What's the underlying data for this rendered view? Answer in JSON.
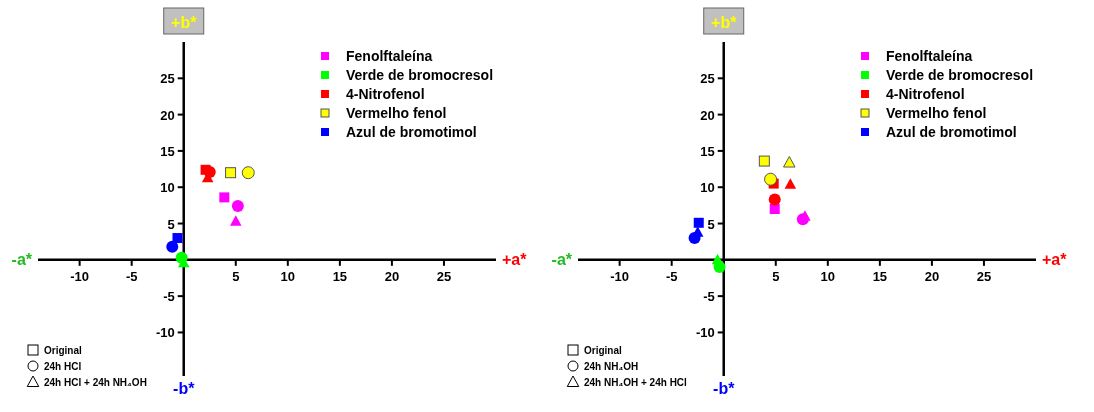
{
  "chart_data": [
    {
      "type": "scatter",
      "xlim": [
        -14,
        30
      ],
      "ylim": [
        -16,
        30
      ],
      "xticks": [
        -10,
        -5,
        5,
        10,
        15,
        20,
        25
      ],
      "yticks": [
        -10,
        -5,
        5,
        10,
        15,
        20,
        25
      ],
      "legend": "top right",
      "grid": false,
      "annotations": [
        "+a*",
        "-a*",
        "+b*",
        "-b*",
        "Original",
        "24h HCl",
        "24h HCl + 24h NH₄OH"
      ],
      "series": [
        {
          "name": "Fenolftaleína",
          "color": "#ff00ff",
          "marker": "square",
          "x": [
            3.9
          ],
          "values": [
            8.6
          ]
        },
        {
          "name": "Verde de bromocresol",
          "color": "#00ff00",
          "marker": "square",
          "x": [
            null
          ],
          "values": [
            null
          ]
        },
        {
          "name": "4-Nitrofenol",
          "color": "#ff0000",
          "marker": "square",
          "x": [
            2.1
          ],
          "values": [
            12.4
          ]
        },
        {
          "name": "Vermelho fenol",
          "color": "#ffff00",
          "marker": "square",
          "x": [
            4.5
          ],
          "values": [
            12.0
          ]
        },
        {
          "name": "Azul de bromotimol",
          "color": "#0000ff",
          "marker": "square",
          "x": [
            -0.6
          ],
          "values": [
            3.0
          ]
        },
        {
          "color": "#ff00ff",
          "marker": "circle",
          "x": [
            5.2
          ],
          "values": [
            7.4
          ]
        },
        {
          "color": "#00ff00",
          "marker": "circle",
          "x": [
            -0.2
          ],
          "values": [
            0.3
          ]
        },
        {
          "color": "#ff0000",
          "marker": "circle",
          "x": [
            2.5
          ],
          "values": [
            12.1
          ]
        },
        {
          "color": "#ffff00",
          "marker": "circle",
          "x": [
            6.2
          ],
          "values": [
            12.0
          ]
        },
        {
          "color": "#0000ff",
          "marker": "circle",
          "x": [
            -1.1
          ],
          "values": [
            1.8
          ]
        },
        {
          "color": "#ff00ff",
          "marker": "triangle",
          "x": [
            5.0
          ],
          "values": [
            5.3
          ]
        },
        {
          "color": "#00ff00",
          "marker": "triangle",
          "x": [
            0.0
          ],
          "values": [
            -0.4
          ]
        },
        {
          "color": "#ff0000",
          "marker": "triangle",
          "x": [
            2.3
          ],
          "values": [
            11.3
          ]
        }
      ]
    },
    {
      "type": "scatter",
      "xlim": [
        -14,
        30
      ],
      "ylim": [
        -16,
        30
      ],
      "xticks": [
        -10,
        -5,
        5,
        10,
        15,
        20,
        25
      ],
      "yticks": [
        -10,
        -5,
        5,
        10,
        15,
        20,
        25
      ],
      "legend": "top right",
      "grid": false,
      "annotations": [
        "+a*",
        "-a*",
        "+b*",
        "-b*",
        "Original",
        "24h NH₄OH",
        "24h NH₄OH + 24h HCl"
      ],
      "series": [
        {
          "name": "Fenolftaleína",
          "color": "#ff00ff",
          "marker": "square",
          "x": [
            4.9
          ],
          "values": [
            7.0
          ]
        },
        {
          "name": "Verde de bromocresol",
          "color": "#00ff00",
          "marker": "square",
          "x": [
            null
          ],
          "values": [
            null
          ]
        },
        {
          "name": "4-Nitrofenol",
          "color": "#ff0000",
          "marker": "square",
          "x": [
            4.8
          ],
          "values": [
            10.5
          ]
        },
        {
          "name": "Vermelho fenol",
          "color": "#ffff00",
          "marker": "square",
          "x": [
            3.9
          ],
          "values": [
            13.6
          ]
        },
        {
          "name": "Azul de bromotimol",
          "color": "#0000ff",
          "marker": "square",
          "x": [
            -2.4
          ],
          "values": [
            5.1
          ]
        },
        {
          "color": "#ff00ff",
          "marker": "circle",
          "x": [
            7.6
          ],
          "values": [
            5.6
          ]
        },
        {
          "color": "#00ff00",
          "marker": "circle",
          "x": [
            -0.4
          ],
          "values": [
            -1.0
          ]
        },
        {
          "color": "#ff0000",
          "marker": "circle",
          "x": [
            4.9
          ],
          "values": [
            8.3
          ]
        },
        {
          "color": "#ffff00",
          "marker": "circle",
          "x": [
            4.5
          ],
          "values": [
            11.1
          ]
        },
        {
          "color": "#0000ff",
          "marker": "circle",
          "x": [
            -2.8
          ],
          "values": [
            3.0
          ]
        },
        {
          "color": "#ff00ff",
          "marker": "triangle",
          "x": [
            7.8
          ],
          "values": [
            6.0
          ]
        },
        {
          "color": "#00ff00",
          "marker": "triangle",
          "x": [
            -0.6
          ],
          "values": [
            0.0
          ]
        },
        {
          "color": "#ff0000",
          "marker": "triangle",
          "x": [
            6.4
          ],
          "values": [
            10.4
          ]
        },
        {
          "color": "#ffff00",
          "marker": "triangle",
          "x": [
            6.3
          ],
          "values": [
            13.4
          ]
        },
        {
          "color": "#0000ff",
          "marker": "triangle",
          "x": [
            -2.5
          ],
          "values": [
            3.8
          ]
        }
      ]
    }
  ]
}
